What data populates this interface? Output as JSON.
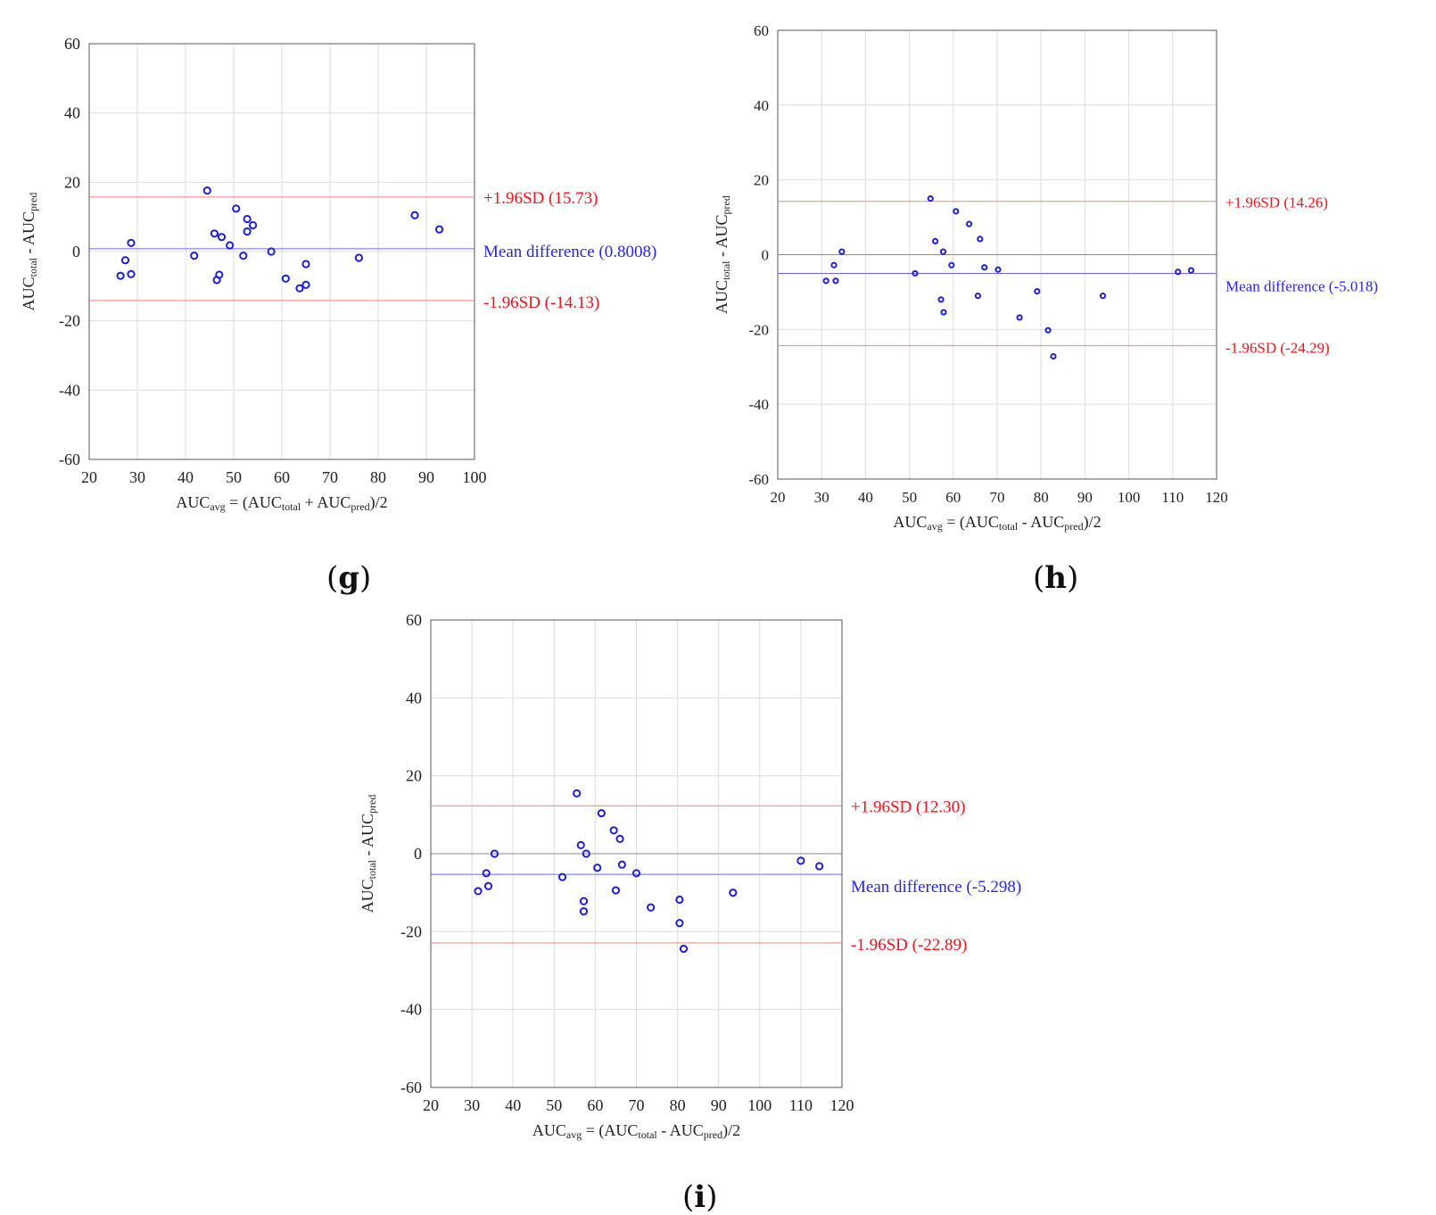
{
  "colors": {
    "axis": "#555555",
    "grid": "#dddddd",
    "points": "#1f1fd6",
    "mean_line": "#6a6adf",
    "limit_line": "#f08080",
    "limit_text": "#e8141e",
    "mean_text": "#2626e0",
    "zero_line": "#8a8a8a",
    "tick_text": "#222222"
  },
  "chart_data": [
    {
      "panel": "g",
      "type": "scatter",
      "title": "",
      "xlabel": "AUC_avg = (AUC_total + AUC_pred)/2",
      "xlabel_parts": {
        "base1": "AUC",
        "sub1": "avg",
        "mid1": " = (AUC",
        "sub2": "total",
        "mid2": " + AUC",
        "sub3": "pred",
        "tail": ")/2"
      },
      "ylabel": "AUC_total - AUC_pred",
      "ylabel_parts": {
        "base1": "AUC",
        "sub1": "total",
        "mid": " - AUC",
        "sub2": "pred"
      },
      "xlim": [
        20,
        100
      ],
      "ylim": [
        -60,
        60
      ],
      "xticks": [
        20,
        30,
        40,
        50,
        60,
        70,
        80,
        90,
        100
      ],
      "yticks": [
        -60,
        -40,
        -20,
        0,
        20,
        40,
        60
      ],
      "grid": true,
      "zero_line": false,
      "upper_limit": {
        "value": 15.73,
        "label": "+1.96SD (15.73)"
      },
      "mean": {
        "value": 0.8008,
        "label": "Mean difference (0.8008)"
      },
      "lower_limit": {
        "value": -14.13,
        "label": "-1.96SD (-14.13)"
      },
      "points": [
        [
          26.5,
          -7
        ],
        [
          27.5,
          -2.5
        ],
        [
          28.7,
          2.5
        ],
        [
          28.7,
          -6.5
        ],
        [
          41.8,
          -1.2
        ],
        [
          44.5,
          17.6
        ],
        [
          46.0,
          5.2
        ],
        [
          46.5,
          -8.2
        ],
        [
          47.0,
          -6.7
        ],
        [
          47.5,
          4.2
        ],
        [
          49.2,
          1.8
        ],
        [
          50.5,
          12.4
        ],
        [
          52.0,
          -1.2
        ],
        [
          52.8,
          9.4
        ],
        [
          52.8,
          5.8
        ],
        [
          54.0,
          7.6
        ],
        [
          57.8,
          0
        ],
        [
          60.8,
          -7.8
        ],
        [
          63.7,
          -10.6
        ],
        [
          65.0,
          -3.6
        ],
        [
          65.0,
          -9.6
        ],
        [
          76.0,
          -1.8
        ],
        [
          87.6,
          10.5
        ],
        [
          92.7,
          6.4
        ]
      ]
    },
    {
      "panel": "h",
      "type": "scatter",
      "title": "",
      "xlabel": "AUC_avg = (AUC_total - AUC_pred)/2",
      "xlabel_parts": {
        "base1": "AUC",
        "sub1": "avg",
        "mid1": " = (AUC",
        "sub2": "total",
        "mid2": " - AUC",
        "sub3": "pred",
        "tail": ")/2"
      },
      "ylabel": "AUC_total - AUC_pred",
      "ylabel_parts": {
        "base1": "AUC",
        "sub1": "total",
        "mid": " - AUC",
        "sub2": "pred"
      },
      "xlim": [
        20,
        120
      ],
      "ylim": [
        -60,
        60
      ],
      "xticks": [
        20,
        30,
        40,
        50,
        60,
        70,
        80,
        90,
        100,
        110,
        120
      ],
      "yticks": [
        -60,
        -40,
        -20,
        0,
        20,
        40,
        60
      ],
      "grid": true,
      "zero_line": true,
      "upper_limit": {
        "value": 14.26,
        "label": "+1.96SD (14.26)"
      },
      "mean": {
        "value": -5.018,
        "label": "Mean difference (-5.018)"
      },
      "lower_limit": {
        "value": -24.29,
        "label": "-1.96SD (-24.29)"
      },
      "points": [
        [
          31.0,
          -7
        ],
        [
          32.8,
          -2.8
        ],
        [
          33.2,
          -7
        ],
        [
          34.6,
          0.8
        ],
        [
          51.3,
          -5
        ],
        [
          54.8,
          15
        ],
        [
          55.9,
          3.6
        ],
        [
          57.2,
          -12
        ],
        [
          57.7,
          0.8
        ],
        [
          57.8,
          -15.4
        ],
        [
          59.6,
          -2.8
        ],
        [
          60.6,
          11.6
        ],
        [
          63.6,
          8.2
        ],
        [
          65.6,
          -11
        ],
        [
          66.1,
          4.2
        ],
        [
          67.1,
          -3.4
        ],
        [
          70.2,
          -4
        ],
        [
          75.1,
          -16.8
        ],
        [
          79.1,
          -9.8
        ],
        [
          81.6,
          -20.2
        ],
        [
          82.8,
          -27.2
        ],
        [
          94.1,
          -11
        ],
        [
          111.2,
          -4.6
        ],
        [
          114.2,
          -4.2
        ]
      ]
    },
    {
      "panel": "i",
      "type": "scatter",
      "title": "",
      "xlabel": "AUC_avg = (AUC_total - AUC_pred)/2",
      "xlabel_parts": {
        "base1": "AUC",
        "sub1": "avg",
        "mid1": " = (AUC",
        "sub2": "total",
        "mid2": " - AUC",
        "sub3": "pred",
        "tail": ")/2"
      },
      "ylabel": "AUC_total - AUC_pred",
      "ylabel_parts": {
        "base1": "AUC",
        "sub1": "total",
        "mid": " - AUC",
        "sub2": "pred"
      },
      "xlim": [
        20,
        120
      ],
      "ylim": [
        -60,
        60
      ],
      "xticks": [
        20,
        30,
        40,
        50,
        60,
        70,
        80,
        90,
        100,
        110,
        120
      ],
      "yticks": [
        -60,
        -40,
        -20,
        0,
        20,
        40,
        60
      ],
      "grid": true,
      "zero_line": true,
      "upper_limit": {
        "value": 12.3,
        "label": "+1.96SD (12.30)"
      },
      "mean": {
        "value": -5.298,
        "label": "Mean difference (-5.298)"
      },
      "lower_limit": {
        "value": -22.89,
        "label": "-1.96SD (-22.89)"
      },
      "points": [
        [
          31.5,
          -9.6
        ],
        [
          33.5,
          -5
        ],
        [
          34.0,
          -8.3
        ],
        [
          35.5,
          0
        ],
        [
          52.0,
          -6
        ],
        [
          55.5,
          15.5
        ],
        [
          56.5,
          2.2
        ],
        [
          57.2,
          -12.2
        ],
        [
          57.2,
          -14.8
        ],
        [
          57.8,
          0
        ],
        [
          60.5,
          -3.6
        ],
        [
          61.5,
          10.4
        ],
        [
          64.5,
          6
        ],
        [
          65.0,
          -9.4
        ],
        [
          66.0,
          3.8
        ],
        [
          66.5,
          -2.8
        ],
        [
          70.0,
          -5
        ],
        [
          73.5,
          -13.8
        ],
        [
          80.5,
          -11.8
        ],
        [
          80.5,
          -17.8
        ],
        [
          81.5,
          -24.4
        ],
        [
          93.5,
          -10
        ],
        [
          110.0,
          -1.8
        ],
        [
          114.5,
          -3.2
        ]
      ]
    }
  ],
  "panel_labels": {
    "g": "g",
    "h": "h",
    "i": "i"
  }
}
